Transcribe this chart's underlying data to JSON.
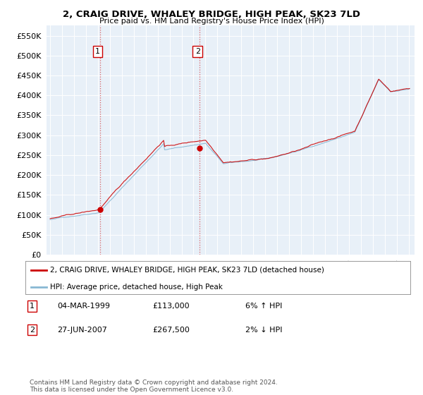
{
  "title": "2, CRAIG DRIVE, WHALEY BRIDGE, HIGH PEAK, SK23 7LD",
  "subtitle": "Price paid vs. HM Land Registry's House Price Index (HPI)",
  "legend_line1": "2, CRAIG DRIVE, WHALEY BRIDGE, HIGH PEAK, SK23 7LD (detached house)",
  "legend_line2": "HPI: Average price, detached house, High Peak",
  "transaction1_label": "1",
  "transaction1_date": "04-MAR-1999",
  "transaction1_price": "£113,000",
  "transaction1_hpi": "6% ↑ HPI",
  "transaction2_label": "2",
  "transaction2_date": "27-JUN-2007",
  "transaction2_price": "£267,500",
  "transaction2_hpi": "2% ↓ HPI",
  "footer": "Contains HM Land Registry data © Crown copyright and database right 2024.\nThis data is licensed under the Open Government Licence v3.0.",
  "hpi_color": "#89b8d4",
  "price_color": "#cc0000",
  "marker_color": "#cc0000",
  "vline_color": "#cc0000",
  "background_color": "#ffffff",
  "chart_bg_color": "#e8f0f8",
  "grid_color": "#ffffff",
  "ylim": [
    0,
    575000
  ],
  "yticks": [
    0,
    50000,
    100000,
    150000,
    200000,
    250000,
    300000,
    350000,
    400000,
    450000,
    500000,
    550000
  ],
  "transaction1_x": 1999.17,
  "transaction1_y": 113000,
  "transaction2_x": 2007.49,
  "transaction2_y": 267500,
  "xmin": 1994.7,
  "xmax": 2025.5
}
